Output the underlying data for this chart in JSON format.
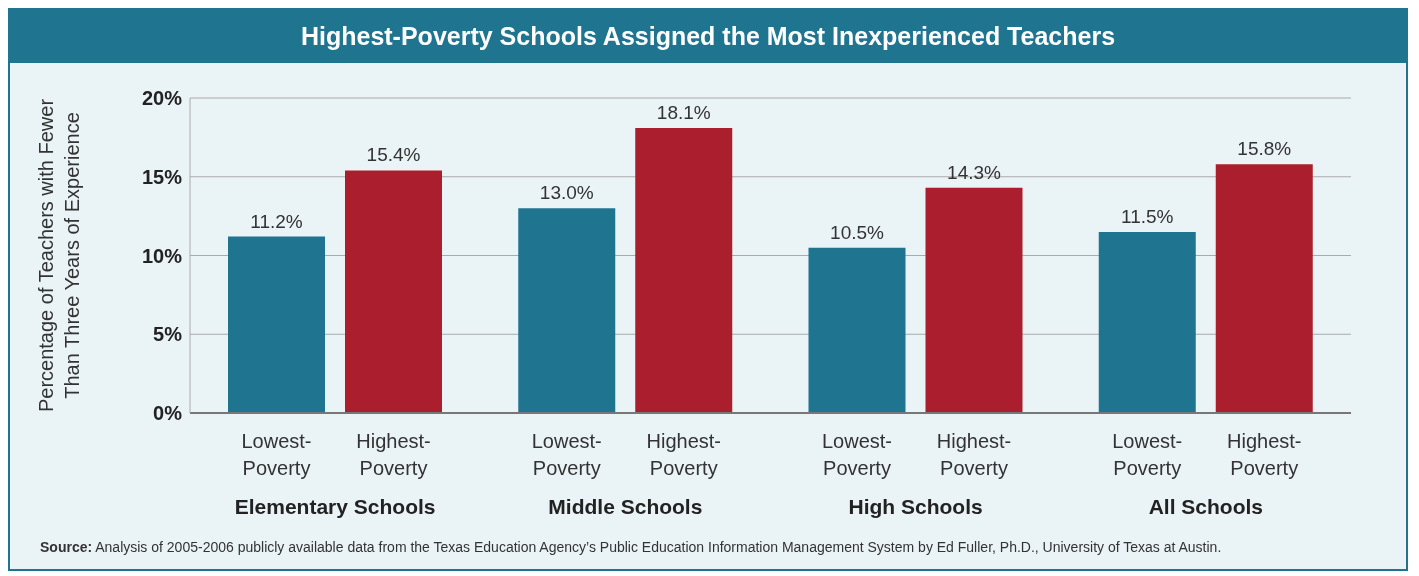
{
  "chart_data": {
    "type": "bar",
    "title": "Highest-Poverty Schools Assigned the Most Inexperienced Teachers",
    "ylabel": "Percentage of Teachers with Fewer Than Three Years of Experience",
    "categories": [
      "Elementary Schools",
      "Middle Schools",
      "High Schools",
      "All Schools"
    ],
    "series": [
      {
        "name": "Lowest-Poverty",
        "color": "#1f7490",
        "values": [
          11.2,
          13.0,
          10.5,
          11.5
        ],
        "value_labels": [
          "11.2%",
          "13.0%",
          "10.5%",
          "11.5%"
        ]
      },
      {
        "name": "Highest-Poverty",
        "color": "#ab1e2d",
        "values": [
          15.4,
          18.1,
          14.3,
          15.8
        ],
        "value_labels": [
          "15.4%",
          "18.1%",
          "14.3%",
          "15.8%"
        ]
      }
    ],
    "ylim": [
      0,
      20
    ],
    "yticks": [
      {
        "value": 0,
        "label": "0%"
      },
      {
        "value": 5,
        "label": "5%"
      },
      {
        "value": 10,
        "label": "10%"
      },
      {
        "value": 15,
        "label": "15%"
      },
      {
        "value": 20,
        "label": "20%"
      }
    ],
    "grid": "y",
    "legend": false,
    "annotations": [
      "Source: Analysis of 2005-2006 publicly available data from the Texas Education Agency’s Public Education Information Management System by Ed Fuller, Ph.D., University of Texas at Austin."
    ]
  }
}
